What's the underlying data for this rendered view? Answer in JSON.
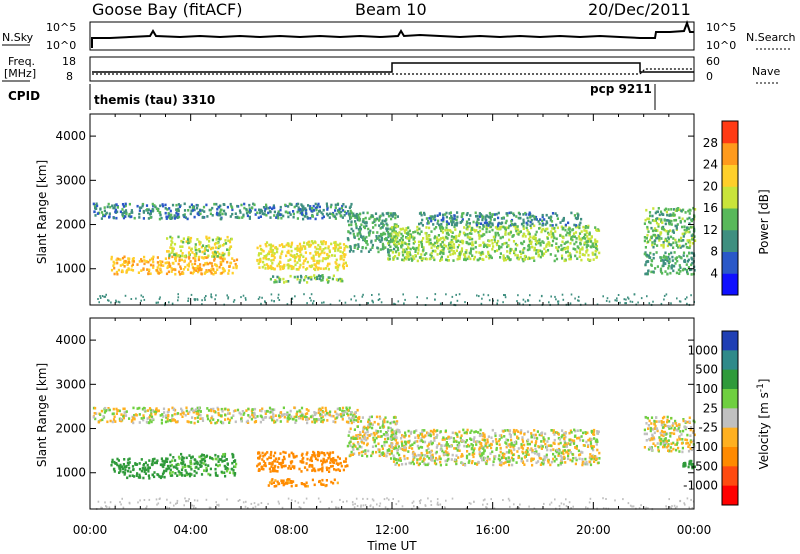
{
  "header": {
    "station": "Goose Bay (fitACF)",
    "beam": "Beam 10",
    "date": "20/Dec/2011"
  },
  "top_panels": {
    "nsky_label": "N.Sky",
    "nsky_ticks": [
      "10^5",
      "10^0"
    ],
    "nsearch_label": "N.Search",
    "nsearch_ticks": [
      "10^5",
      "10^0"
    ],
    "freq_label_line1": "Freq.",
    "freq_label_line2": "[MHz]",
    "freq_ticks": [
      "18",
      "8"
    ],
    "nave_label": "Nave",
    "nave_ticks": [
      "60",
      "0"
    ],
    "cpid_label": "CPID",
    "cpid_programs": [
      {
        "name": "themis (tau) 3310",
        "start_hour": 0
      },
      {
        "name": "pcp 9211",
        "start_hour": 22.3
      }
    ]
  },
  "time_axis": {
    "label": "Time UT",
    "ticks": [
      "00:00",
      "04:00",
      "08:00",
      "12:00",
      "16:00",
      "20:00",
      "00:00"
    ]
  },
  "chart_data": [
    {
      "type": "heatmap",
      "title": "",
      "ylabel": "Slant Range [km]",
      "xlabel": "",
      "x_range_hours": [
        0,
        24
      ],
      "ylim": [
        180,
        4500
      ],
      "y_ticks": [
        1000,
        2000,
        3000,
        4000
      ],
      "colorbar": {
        "label": "Power [dB]",
        "ticks": [
          4,
          8,
          12,
          16,
          20,
          24,
          28
        ],
        "colors": [
          "#1010ff",
          "#2a58c8",
          "#3f8f80",
          "#58b85a",
          "#c9e43a",
          "#ffcf2a",
          "#ff9a1c",
          "#ff3a14"
        ]
      },
      "regions": [
        {
          "t0": 0.1,
          "t1": 10.6,
          "r0": 2150,
          "r1": 2500,
          "value": 10
        },
        {
          "t0": 0.8,
          "t1": 5.8,
          "r0": 900,
          "r1": 1300,
          "value": 24
        },
        {
          "t0": 3.0,
          "t1": 5.6,
          "r0": 1300,
          "r1": 1750,
          "value": 18
        },
        {
          "t0": 6.6,
          "t1": 10.2,
          "r0": 1000,
          "r1": 1650,
          "value": 20
        },
        {
          "t0": 7.0,
          "t1": 10.0,
          "r0": 720,
          "r1": 880,
          "value": 14
        },
        {
          "t0": 10.2,
          "t1": 12.2,
          "r0": 1400,
          "r1": 2300,
          "value": 12
        },
        {
          "t0": 11.8,
          "t1": 20.2,
          "r0": 1200,
          "r1": 2000,
          "value": 16
        },
        {
          "t0": 13.0,
          "t1": 19.5,
          "r0": 2000,
          "r1": 2300,
          "value": 10
        },
        {
          "t0": 22.0,
          "t1": 24.0,
          "r0": 1500,
          "r1": 2400,
          "value": 14
        },
        {
          "t0": 22.0,
          "t1": 24.0,
          "r0": 900,
          "r1": 1400,
          "value": 12
        }
      ]
    },
    {
      "type": "heatmap",
      "title": "",
      "ylabel": "Slant Range [km]",
      "xlabel": "Time UT",
      "x_range_hours": [
        0,
        24
      ],
      "ylim": [
        180,
        4500
      ],
      "y_ticks": [
        1000,
        2000,
        3000,
        4000
      ],
      "colorbar": {
        "label": "Velocity [m s^-1]",
        "ticks": [
          1000,
          500,
          100,
          25,
          -25,
          -100,
          -500,
          -1000
        ],
        "colors": [
          "#1f3fb4",
          "#2f8a8a",
          "#2f9a3a",
          "#6fd040",
          "#c0c0c0",
          "#ffb020",
          "#ff8a00",
          "#ff4a10",
          "#ff0000"
        ]
      },
      "regions": [
        {
          "t0": 0.1,
          "t1": 10.6,
          "r0": 2150,
          "r1": 2500,
          "value": 0
        },
        {
          "t0": 0.8,
          "t1": 3.0,
          "r0": 900,
          "r1": 1350,
          "value": 300
        },
        {
          "t0": 3.0,
          "t1": 5.8,
          "r0": 950,
          "r1": 1450,
          "value": 150
        },
        {
          "t0": 6.6,
          "t1": 10.2,
          "r0": 1050,
          "r1": 1500,
          "value": -300
        },
        {
          "t0": 7.0,
          "t1": 10.0,
          "r0": 720,
          "r1": 880,
          "value": -150
        },
        {
          "t0": 10.2,
          "t1": 12.2,
          "r0": 1400,
          "r1": 2300,
          "value": 0
        },
        {
          "t0": 11.8,
          "t1": 20.2,
          "r0": 1200,
          "r1": 2000,
          "value": 0
        },
        {
          "t0": 22.0,
          "t1": 24.0,
          "r0": 1500,
          "r1": 2300,
          "value": 0
        },
        {
          "t0": 23.5,
          "t1": 24.0,
          "r0": 1100,
          "r1": 1300,
          "value": 400
        }
      ]
    }
  ]
}
